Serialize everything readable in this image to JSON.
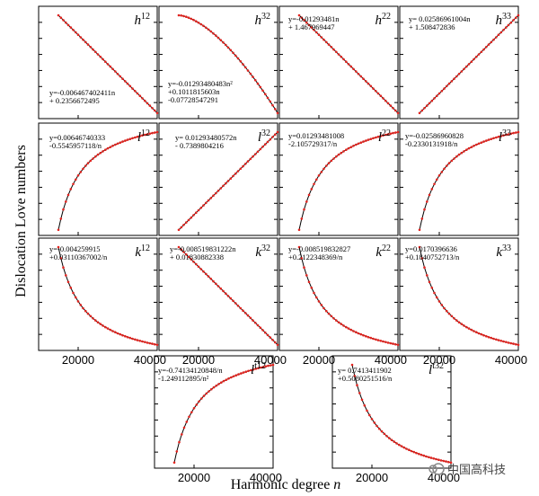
{
  "figure": {
    "ylabel": "Dislocation Love numbers",
    "xlabel_text": "Harmonic degree ",
    "xlabel_var": "n",
    "x_ticks": [
      "20000",
      "40000"
    ],
    "watermark": "中国高科技",
    "colors": {
      "points": "#e4241f",
      "line": "#000000"
    }
  },
  "chart_data": [
    {
      "id": "h12",
      "type": "line",
      "symbol": "h",
      "sup": "12",
      "equation": [
        "y=-0.006467402411n",
        "+ 0.2356672495"
      ],
      "xlim": [
        10000,
        40000
      ],
      "x": [
        15000,
        40000
      ],
      "trend": "linear-decreasing"
    },
    {
      "id": "h32",
      "type": "line",
      "symbol": "h",
      "sup": "32",
      "equation": [
        "y=-0.01293480483n²",
        "+0.1011815603n",
        "-0.07728547291"
      ],
      "xlim": [
        10000,
        40000
      ],
      "x": [
        15000,
        40000
      ],
      "trend": "concave-decreasing"
    },
    {
      "id": "h22",
      "type": "line",
      "symbol": "h",
      "sup": "22",
      "equation": [
        "y=-0.01293481n",
        "+ 1.467969447"
      ],
      "xlim": [
        10000,
        40000
      ],
      "x": [
        15000,
        40000
      ],
      "trend": "linear-decreasing"
    },
    {
      "id": "h33",
      "type": "line",
      "symbol": "h",
      "sup": "33",
      "equation": [
        "y= 0.02586961004n",
        "+ 1.508472836"
      ],
      "xlim": [
        10000,
        40000
      ],
      "x": [
        15000,
        40000
      ],
      "trend": "linear-increasing"
    },
    {
      "id": "l12",
      "type": "line",
      "symbol": "l",
      "sup": "12",
      "equation": [
        "y=0.00646740333",
        "-0.5545957118/n"
      ],
      "xlim": [
        10000,
        40000
      ],
      "x": [
        15000,
        40000
      ],
      "trend": "saturating-increasing"
    },
    {
      "id": "l32",
      "type": "line",
      "symbol": "l",
      "sup": "32",
      "equation": [
        "y= 0.01293480572n",
        "- 0.7389804216"
      ],
      "xlim": [
        10000,
        40000
      ],
      "x": [
        15000,
        40000
      ],
      "trend": "linear-increasing"
    },
    {
      "id": "l22",
      "type": "line",
      "symbol": "l",
      "sup": "22",
      "equation": [
        "y=0.01293481008",
        "-2.105729317/n"
      ],
      "xlim": [
        10000,
        40000
      ],
      "x": [
        15000,
        40000
      ],
      "trend": "saturating-increasing"
    },
    {
      "id": "l33",
      "type": "line",
      "symbol": "l",
      "sup": "33",
      "equation": [
        "y=-0.02586960828",
        "-0.2330131918/n"
      ],
      "xlim": [
        10000,
        40000
      ],
      "x": [
        15000,
        40000
      ],
      "trend": "saturating-increasing"
    },
    {
      "id": "k12",
      "type": "line",
      "symbol": "k",
      "sup": "12",
      "equation": [
        "y=-0.004259915",
        "+0.03110367002/n"
      ],
      "xlim": [
        10000,
        40000
      ],
      "x": [
        15000,
        40000
      ],
      "trend": "decaying-decreasing"
    },
    {
      "id": "k32",
      "type": "line",
      "symbol": "k",
      "sup": "32",
      "equation": [
        "y=-0.008519831222n",
        "+ 0.01830882338"
      ],
      "xlim": [
        10000,
        40000
      ],
      "x": [
        15000,
        40000
      ],
      "trend": "linear-decreasing"
    },
    {
      "id": "k22",
      "type": "line",
      "symbol": "k",
      "sup": "22",
      "equation": [
        "y=-0.008519832827",
        "+0.2122348369/n"
      ],
      "xlim": [
        10000,
        40000
      ],
      "x": [
        15000,
        40000
      ],
      "trend": "decaying-decreasing"
    },
    {
      "id": "k33",
      "type": "line",
      "symbol": "k",
      "sup": "33",
      "equation": [
        "y=0.0170396636",
        "+0.1840752713/n"
      ],
      "xlim": [
        10000,
        40000
      ],
      "x": [
        15000,
        40000
      ],
      "trend": "decaying-decreasing"
    },
    {
      "id": "lt12",
      "type": "line",
      "symbol": "l",
      "prime": "t",
      "sup": "12",
      "equation": [
        "y=-0.74134120848/n",
        "-1.249112895/n²"
      ],
      "xlim": [
        10000,
        40000
      ],
      "x": [
        15000,
        40000
      ],
      "trend": "saturating-increasing"
    },
    {
      "id": "lt32",
      "type": "line",
      "symbol": "l",
      "prime": "t",
      "sup": "32",
      "equation": [
        "y= 0.7413411902",
        "+0.5080251516/n"
      ],
      "xlim": [
        10000,
        40000
      ],
      "x": [
        15000,
        40000
      ],
      "trend": "decaying-decreasing"
    }
  ]
}
